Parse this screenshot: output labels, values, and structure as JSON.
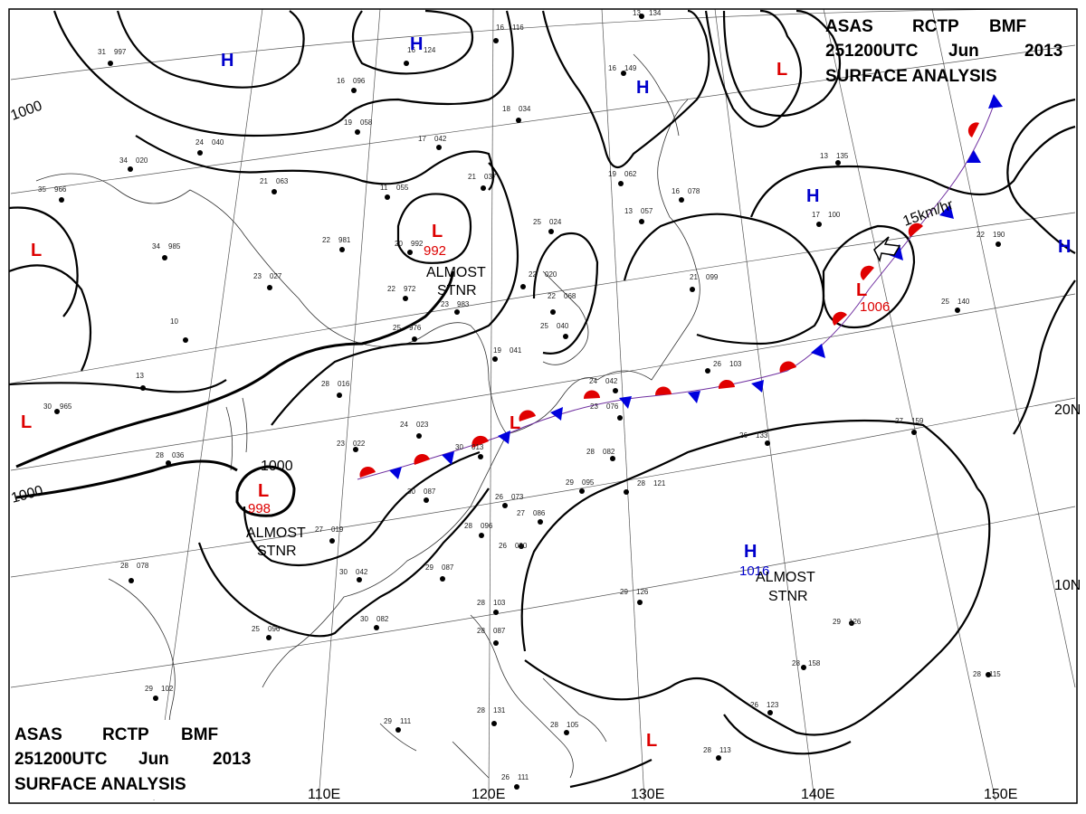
{
  "header": {
    "line1": [
      "ASAS",
      "RCTP",
      "BMF"
    ],
    "line2": [
      "251200UTC",
      "Jun",
      "2013"
    ],
    "line3": "SURFACE  ANALYSIS"
  },
  "grid_labels": {
    "lon": [
      "110E",
      "120E",
      "130E",
      "140E",
      "150E"
    ],
    "lat": [
      "20N",
      "10N"
    ]
  },
  "isobar_labels": [
    "1000",
    "1000",
    "1000"
  ],
  "pressure_centers": [
    {
      "type": "H",
      "color": "#0000cc"
    },
    {
      "type": "H",
      "color": "#0000cc"
    },
    {
      "type": "H",
      "color": "#0000cc"
    },
    {
      "type": "H",
      "color": "#0000cc"
    },
    {
      "type": "H",
      "color": "#0000cc"
    },
    {
      "type": "H",
      "color": "#0000cc",
      "value": "1016"
    },
    {
      "type": "L",
      "color": "#dd0000"
    },
    {
      "type": "L",
      "color": "#dd0000"
    },
    {
      "type": "L",
      "color": "#dd0000",
      "value": "992"
    },
    {
      "type": "L",
      "color": "#dd0000"
    },
    {
      "type": "L",
      "color": "#dd0000",
      "value": "998"
    },
    {
      "type": "L",
      "color": "#dd0000"
    },
    {
      "type": "L",
      "color": "#dd0000",
      "value": "1006"
    },
    {
      "type": "L",
      "color": "#dd0000"
    }
  ],
  "annotations": {
    "almost_stnr_1": [
      "ALMOST",
      "STNR"
    ],
    "almost_stnr_2": [
      "ALMOST",
      "STNR"
    ],
    "almost_stnr_3": [
      "ALMOST",
      "STNR"
    ],
    "motion": "15km/hr"
  },
  "stations": [
    {
      "t": "31",
      "p": "997"
    },
    {
      "t": "16",
      "p": "116"
    },
    {
      "t": "16",
      "p": "124"
    },
    {
      "t": "16",
      "p": "096"
    },
    {
      "t": "19",
      "p": "058"
    },
    {
      "t": "18",
      "p": "034"
    },
    {
      "t": "17",
      "p": "042"
    },
    {
      "t": "24",
      "p": "040"
    },
    {
      "t": "34",
      "p": "020"
    },
    {
      "t": "35",
      "p": "966"
    },
    {
      "t": "21",
      "p": "063"
    },
    {
      "t": "11",
      "p": "055"
    },
    {
      "t": "21",
      "p": "037"
    },
    {
      "t": "19",
      "p": "062"
    },
    {
      "t": "25",
      "p": "024"
    },
    {
      "t": "13",
      "p": "057"
    },
    {
      "t": "22",
      "p": "981"
    },
    {
      "t": "34",
      "p": "985"
    },
    {
      "t": "20",
      "p": "992"
    },
    {
      "t": "22",
      "p": "972"
    },
    {
      "t": "23",
      "p": "027"
    },
    {
      "t": "10",
      "p": ""
    },
    {
      "t": "25",
      "p": "976"
    },
    {
      "t": "23",
      "p": "983"
    },
    {
      "t": "22",
      "p": "020"
    },
    {
      "t": "22",
      "p": "068"
    },
    {
      "t": "25",
      "p": "040"
    },
    {
      "t": "21",
      "p": "099"
    },
    {
      "t": "19",
      "p": "041"
    },
    {
      "t": "28",
      "p": "016"
    },
    {
      "t": "13",
      "p": ""
    },
    {
      "t": "30",
      "p": "965"
    },
    {
      "t": "24",
      "p": "023"
    },
    {
      "t": "23",
      "p": "022"
    },
    {
      "t": "30",
      "p": "013"
    },
    {
      "t": "28",
      "p": "036"
    },
    {
      "t": "24",
      "p": "042"
    },
    {
      "t": "23",
      "p": "076"
    },
    {
      "t": "28",
      "p": "082"
    },
    {
      "t": "29",
      "p": "095"
    },
    {
      "t": "28",
      "p": "121"
    },
    {
      "t": "26",
      "p": "103"
    },
    {
      "t": "30",
      "p": "087"
    },
    {
      "t": "26",
      "p": "073"
    },
    {
      "t": "27",
      "p": "019"
    },
    {
      "t": "27",
      "p": "086"
    },
    {
      "t": "28",
      "p": "096"
    },
    {
      "t": "26",
      "p": "090"
    },
    {
      "t": "30",
      "p": "042"
    },
    {
      "t": "29",
      "p": "087"
    },
    {
      "t": "28",
      "p": "078"
    },
    {
      "t": "30",
      "p": "082"
    },
    {
      "t": "25",
      "p": "096"
    },
    {
      "t": "28",
      "p": "103"
    },
    {
      "t": "28",
      "p": "087"
    },
    {
      "t": "29",
      "p": "126"
    },
    {
      "t": "29",
      "p": "126"
    },
    {
      "t": "29",
      "p": "102"
    },
    {
      "t": "29",
      "p": "111"
    },
    {
      "t": "28",
      "p": "131"
    },
    {
      "t": "28",
      "p": "105"
    },
    {
      "t": "26",
      "p": "111"
    },
    {
      "t": "28",
      "p": "158"
    },
    {
      "t": "28",
      "p": "115"
    },
    {
      "t": "26",
      "p": "123"
    },
    {
      "t": "28",
      "p": "113"
    },
    {
      "t": "26",
      "p": "133"
    },
    {
      "t": "27",
      "p": "159"
    },
    {
      "t": "25",
      "p": "140"
    },
    {
      "t": "22",
      "p": "190"
    },
    {
      "t": "13",
      "p": "135"
    },
    {
      "t": "17",
      "p": "100"
    },
    {
      "t": "16",
      "p": "078"
    },
    {
      "t": "16",
      "p": "149"
    },
    {
      "t": "13",
      "p": "134"
    }
  ]
}
